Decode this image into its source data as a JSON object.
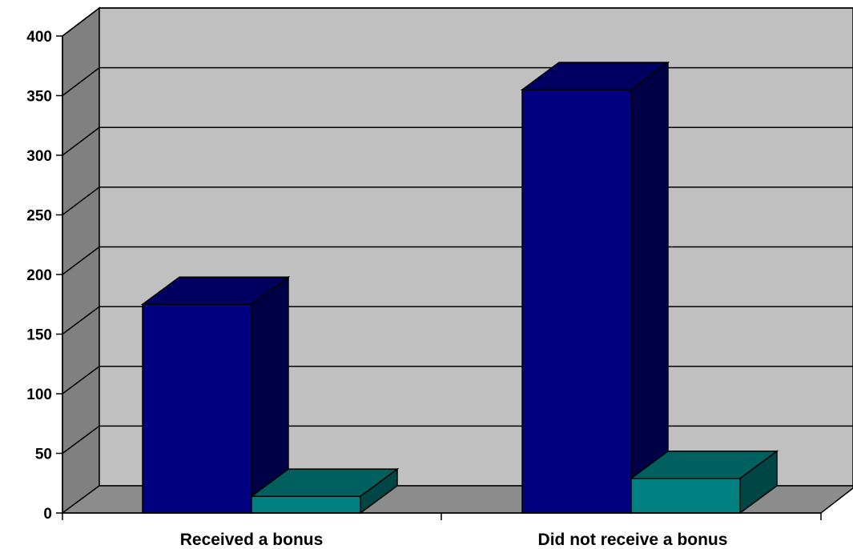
{
  "chart_data": {
    "type": "bar",
    "style": "3d-clustered-column",
    "categories": [
      "Received a bonus",
      "Did not receive a bonus"
    ],
    "series": [
      {
        "values": [
          175,
          355
        ],
        "color": "#000080"
      },
      {
        "values": [
          14,
          29
        ],
        "color": "#008080"
      }
    ],
    "ylim": [
      0,
      400
    ],
    "yticks": [
      0,
      50,
      100,
      150,
      200,
      250,
      300,
      350,
      400
    ],
    "grid": true,
    "legend": "none",
    "colors": {
      "wall": "#c0c0c0",
      "side_wall": "#808080",
      "floor": "#8c8c8c"
    }
  }
}
